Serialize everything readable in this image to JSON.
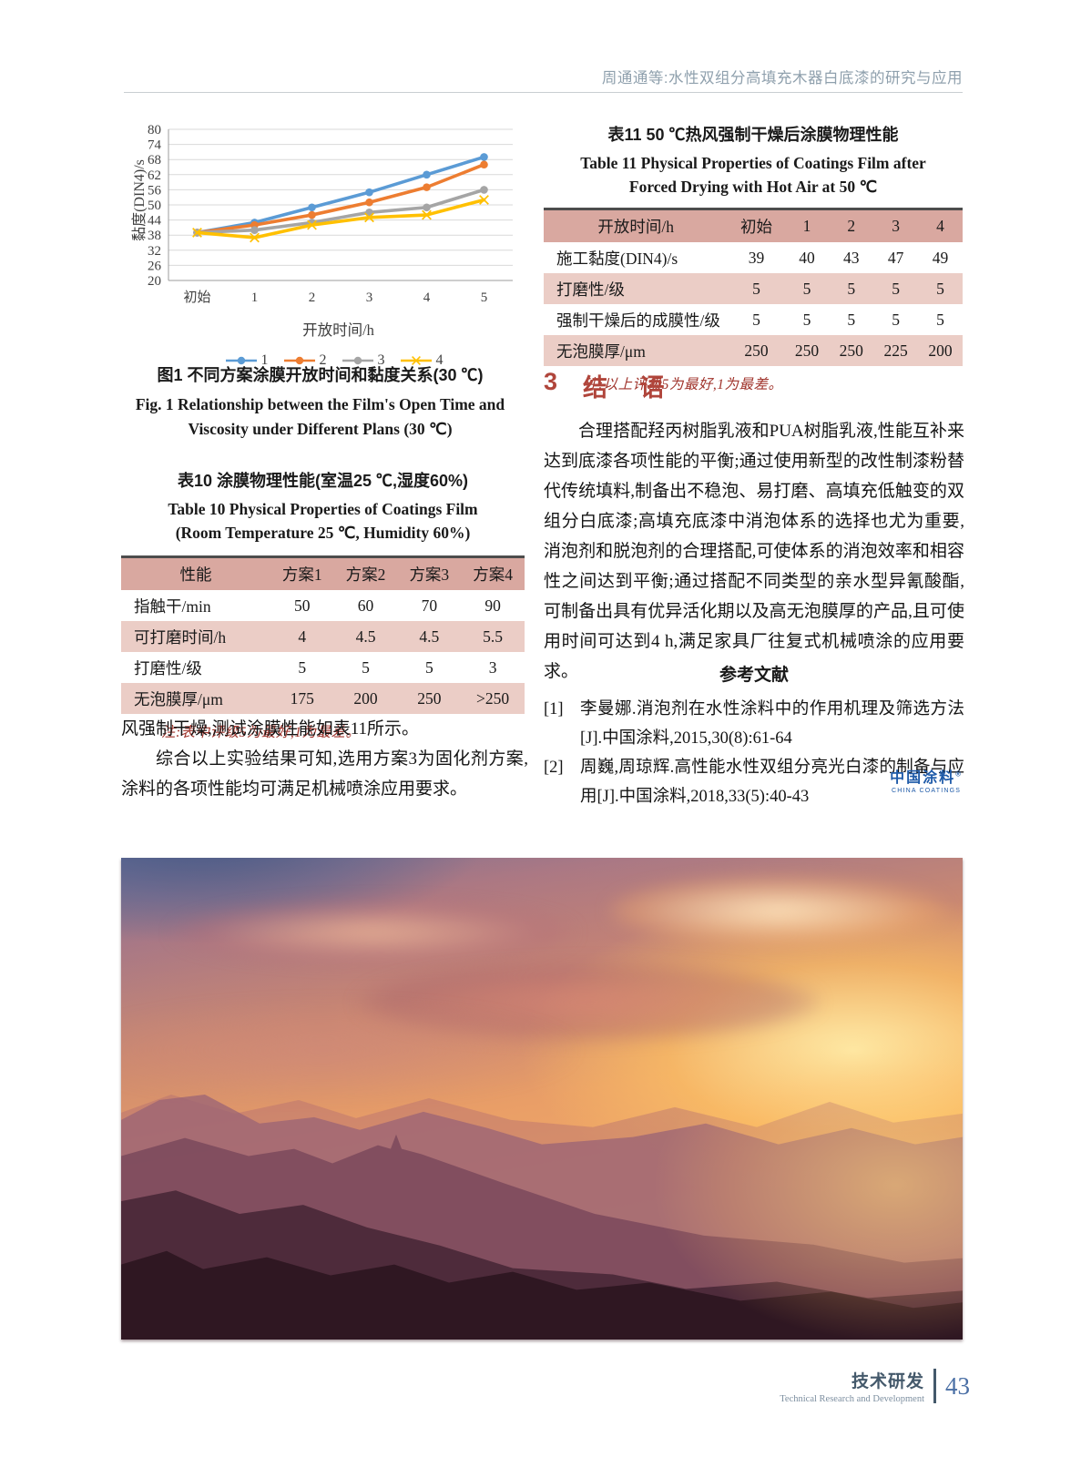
{
  "header": {
    "running_title": "周通通等:水性双组分高填充木器白底漆的研究与应用"
  },
  "chart_data": {
    "type": "line",
    "categories": [
      "初始",
      "1",
      "2",
      "3",
      "4",
      "5"
    ],
    "xlabel": "开放时间/h",
    "ylabel": "黏度(DIN4)/s",
    "ylim": [
      20,
      80
    ],
    "ytick_step": 6,
    "grid": true,
    "legend_position": "bottom",
    "series": [
      {
        "name": "1",
        "color": "#5B9BD5",
        "marker": "circle",
        "values": [
          39,
          43,
          49,
          55,
          62,
          69
        ]
      },
      {
        "name": "2",
        "color": "#ED7D31",
        "marker": "circle",
        "values": [
          39,
          42,
          46,
          51,
          57,
          66
        ]
      },
      {
        "name": "3",
        "color": "#A5A5A5",
        "marker": "circle",
        "values": [
          39,
          40,
          43,
          47,
          49,
          56
        ]
      },
      {
        "name": "4",
        "color": "#FFC000",
        "marker": "x",
        "values": [
          39,
          37,
          42,
          45,
          46,
          52
        ]
      }
    ]
  },
  "figure1": {
    "caption_cn": "图1  不同方案涂膜开放时间和黏度关系(30 ℃)",
    "caption_en_line1": "Fig. 1  Relationship between the Film's Open Time and",
    "caption_en_line2": "Viscosity under Different Plans (30 ℃)"
  },
  "table10": {
    "title_cn": "表10  涂膜物理性能(室温25 ℃,湿度60%)",
    "title_en_line1": "Table 10  Physical Properties of Coatings Film",
    "title_en_line2": "(Room Temperature 25 ℃, Humidity 60%)",
    "headers": [
      "性能",
      "方案1",
      "方案2",
      "方案3",
      "方案4"
    ],
    "rows": [
      [
        "指触干/min",
        "50",
        "60",
        "70",
        "90"
      ],
      [
        "可打磨时间/h",
        "4",
        "4.5",
        "4.5",
        "5.5"
      ],
      [
        "打磨性/级",
        "5",
        "5",
        "5",
        "3"
      ],
      [
        "无泡膜厚/μm",
        "175",
        "200",
        "250",
        ">250"
      ]
    ],
    "note": "注:表中评级5为最好,1为最差。"
  },
  "table11": {
    "title_cn": "表11  50 ℃热风强制干燥后涂膜物理性能",
    "title_en_line1": "Table 11  Physical Properties of Coatings Film after",
    "title_en_line2": "Forced Drying with Hot Air at 50 ℃",
    "headers": [
      "开放时间/h",
      "初始",
      "1",
      "2",
      "3",
      "4"
    ],
    "rows": [
      [
        "施工黏度(DIN4)/s",
        "39",
        "40",
        "43",
        "47",
        "49"
      ],
      [
        "打磨性/级",
        "5",
        "5",
        "5",
        "5",
        "5"
      ],
      [
        "强制干燥后的成膜性/级",
        "5",
        "5",
        "5",
        "5",
        "5"
      ],
      [
        "无泡膜厚/μm",
        "250",
        "250",
        "250",
        "225",
        "200"
      ]
    ],
    "note": "注:以上评级5为最好,1为最差。"
  },
  "left_column": {
    "para1": "风强制干燥,测试涂膜性能如表11所示。",
    "para2": "综合以上实验结果可知,选用方案3为固化剂方案,涂料的各项性能均可满足机械喷涂应用要求。"
  },
  "section3": {
    "number": "3",
    "title": "结 语",
    "paragraph": "合理搭配羟丙树脂乳液和PUA树脂乳液,性能互补来达到底漆各项性能的平衡;通过使用新型的改性制漆粉替代传统填料,制备出不稳泡、易打磨、高填充低触变的双组分白底漆;高填充底漆中消泡体系的选择也尤为重要,消泡剂和脱泡剂的合理搭配,可使体系的消泡效率和相容性之间达到平衡;通过搭配不同类型的亲水型异氰酸酯,可制备出具有优异活化期以及高无泡膜厚的产品,且可使用时间可达到4 h,满足家具厂往复式机械喷涂的应用要求。"
  },
  "references": {
    "heading": "参考文献",
    "items": [
      {
        "label": "[1]",
        "text": "李曼娜.消泡剂在水性涂料中的作用机理及筛选方法[J].中国涂料,2015,30(8):61-64"
      },
      {
        "label": "[2]",
        "text": "周巍,周琼辉.高性能水性双组分亮光白漆的制备与应用[J].中国涂料,2018,33(5):40-43"
      }
    ]
  },
  "logo": {
    "name_cn": "中国涂料",
    "name_en": "CHINA COATINGS"
  },
  "footer": {
    "section_cn": "技术研发",
    "section_en": "Technical Research and Development",
    "page_number": "43"
  },
  "colors": {
    "series": [
      "#5B9BD5",
      "#ED7D31",
      "#A5A5A5",
      "#FFC000"
    ],
    "table_header_bg": "#D9A8A0",
    "table_stripe_bg": "#EBCDC6",
    "note_red": "#A0342C",
    "section_red": "#B0453B",
    "footer_blue": "#4a6fa5",
    "logo_blue": "#1E5AA8"
  }
}
